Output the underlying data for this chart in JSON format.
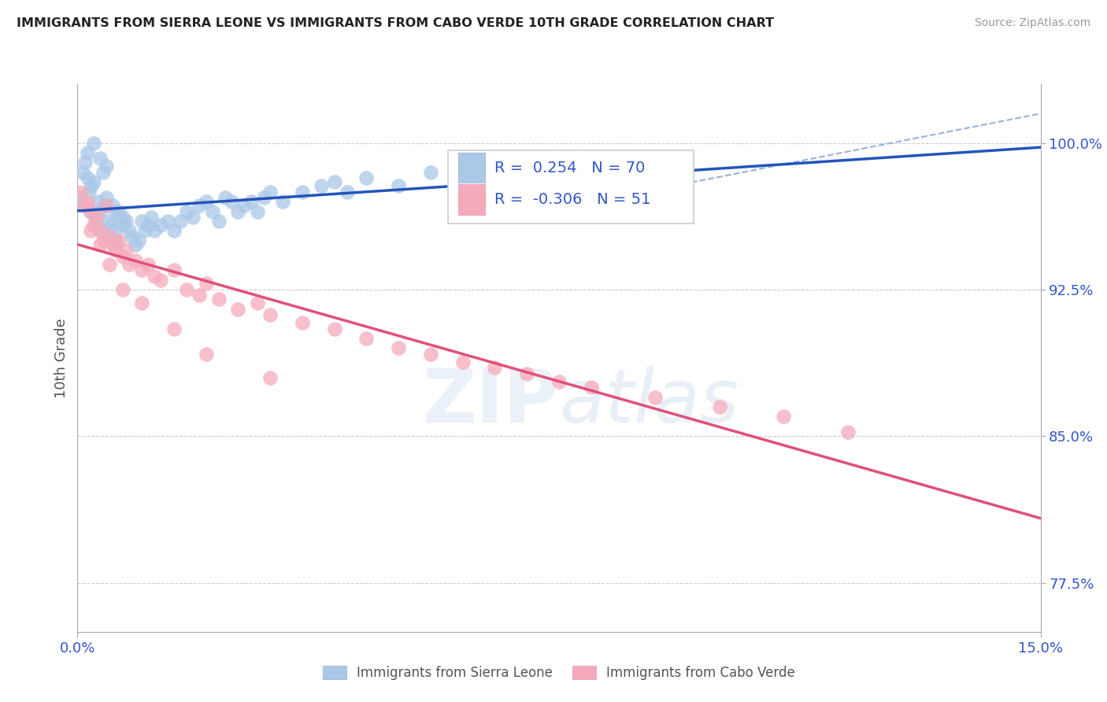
{
  "title": "IMMIGRANTS FROM SIERRA LEONE VS IMMIGRANTS FROM CABO VERDE 10TH GRADE CORRELATION CHART",
  "source": "Source: ZipAtlas.com",
  "ylabel": "10th Grade",
  "xmin": 0.0,
  "xmax": 15.0,
  "ymin": 75.0,
  "ymax": 103.0,
  "r_sl": 0.254,
  "n_sl": 70,
  "r_cv": -0.306,
  "n_cv": 51,
  "sierra_leone_color": "#aac8e8",
  "cabo_verde_color": "#f5aabb",
  "sl_line_color": "#2255bb",
  "cv_line_color": "#e0507a",
  "legend_label_sl": "Immigrants from Sierra Leone",
  "legend_label_cv": "Immigrants from Cabo Verde",
  "sl_x": [
    0.05,
    0.08,
    0.1,
    0.12,
    0.15,
    0.18,
    0.2,
    0.22,
    0.25,
    0.28,
    0.3,
    0.32,
    0.35,
    0.38,
    0.4,
    0.42,
    0.45,
    0.48,
    0.5,
    0.52,
    0.55,
    0.58,
    0.6,
    0.65,
    0.7,
    0.72,
    0.75,
    0.8,
    0.85,
    0.9,
    0.95,
    1.0,
    1.05,
    1.1,
    1.15,
    1.2,
    1.3,
    1.4,
    1.5,
    1.6,
    1.7,
    1.8,
    1.9,
    2.0,
    2.1,
    2.2,
    2.3,
    2.4,
    2.5,
    2.6,
    2.7,
    2.8,
    2.9,
    3.0,
    3.2,
    3.5,
    3.8,
    4.0,
    4.2,
    4.5,
    5.0,
    5.5,
    6.0,
    6.5,
    7.0,
    0.15,
    0.25,
    0.35,
    0.45,
    0.6
  ],
  "sl_y": [
    97.2,
    98.5,
    96.8,
    99.0,
    98.2,
    97.5,
    96.5,
    97.8,
    98.0,
    96.2,
    95.8,
    97.0,
    96.5,
    95.5,
    98.5,
    96.8,
    97.2,
    95.2,
    96.0,
    95.8,
    96.8,
    95.5,
    95.0,
    96.5,
    96.2,
    95.8,
    96.0,
    95.5,
    95.2,
    94.8,
    95.0,
    96.0,
    95.5,
    95.8,
    96.2,
    95.5,
    95.8,
    96.0,
    95.5,
    96.0,
    96.5,
    96.2,
    96.8,
    97.0,
    96.5,
    96.0,
    97.2,
    97.0,
    96.5,
    96.8,
    97.0,
    96.5,
    97.2,
    97.5,
    97.0,
    97.5,
    97.8,
    98.0,
    97.5,
    98.2,
    97.8,
    98.5,
    98.0,
    98.5,
    99.0,
    99.5,
    100.0,
    99.2,
    98.8,
    96.5
  ],
  "cv_x": [
    0.05,
    0.1,
    0.15,
    0.2,
    0.25,
    0.3,
    0.35,
    0.4,
    0.45,
    0.5,
    0.55,
    0.6,
    0.65,
    0.7,
    0.75,
    0.8,
    0.9,
    1.0,
    1.1,
    1.2,
    1.3,
    1.5,
    1.7,
    1.9,
    2.0,
    2.2,
    2.5,
    2.8,
    3.0,
    3.5,
    4.0,
    4.5,
    5.0,
    5.5,
    6.0,
    6.5,
    7.0,
    7.5,
    8.0,
    9.0,
    10.0,
    11.0,
    12.0,
    0.2,
    0.35,
    0.5,
    0.7,
    1.0,
    1.5,
    2.0,
    3.0
  ],
  "cv_y": [
    97.5,
    96.8,
    97.0,
    96.5,
    95.8,
    96.2,
    95.5,
    95.0,
    96.8,
    95.2,
    94.8,
    94.5,
    95.0,
    94.2,
    94.5,
    93.8,
    94.0,
    93.5,
    93.8,
    93.2,
    93.0,
    93.5,
    92.5,
    92.2,
    92.8,
    92.0,
    91.5,
    91.8,
    91.2,
    90.8,
    90.5,
    90.0,
    89.5,
    89.2,
    88.8,
    88.5,
    88.2,
    87.8,
    87.5,
    87.0,
    86.5,
    86.0,
    85.2,
    95.5,
    94.8,
    93.8,
    92.5,
    91.8,
    90.5,
    89.2,
    88.0
  ]
}
